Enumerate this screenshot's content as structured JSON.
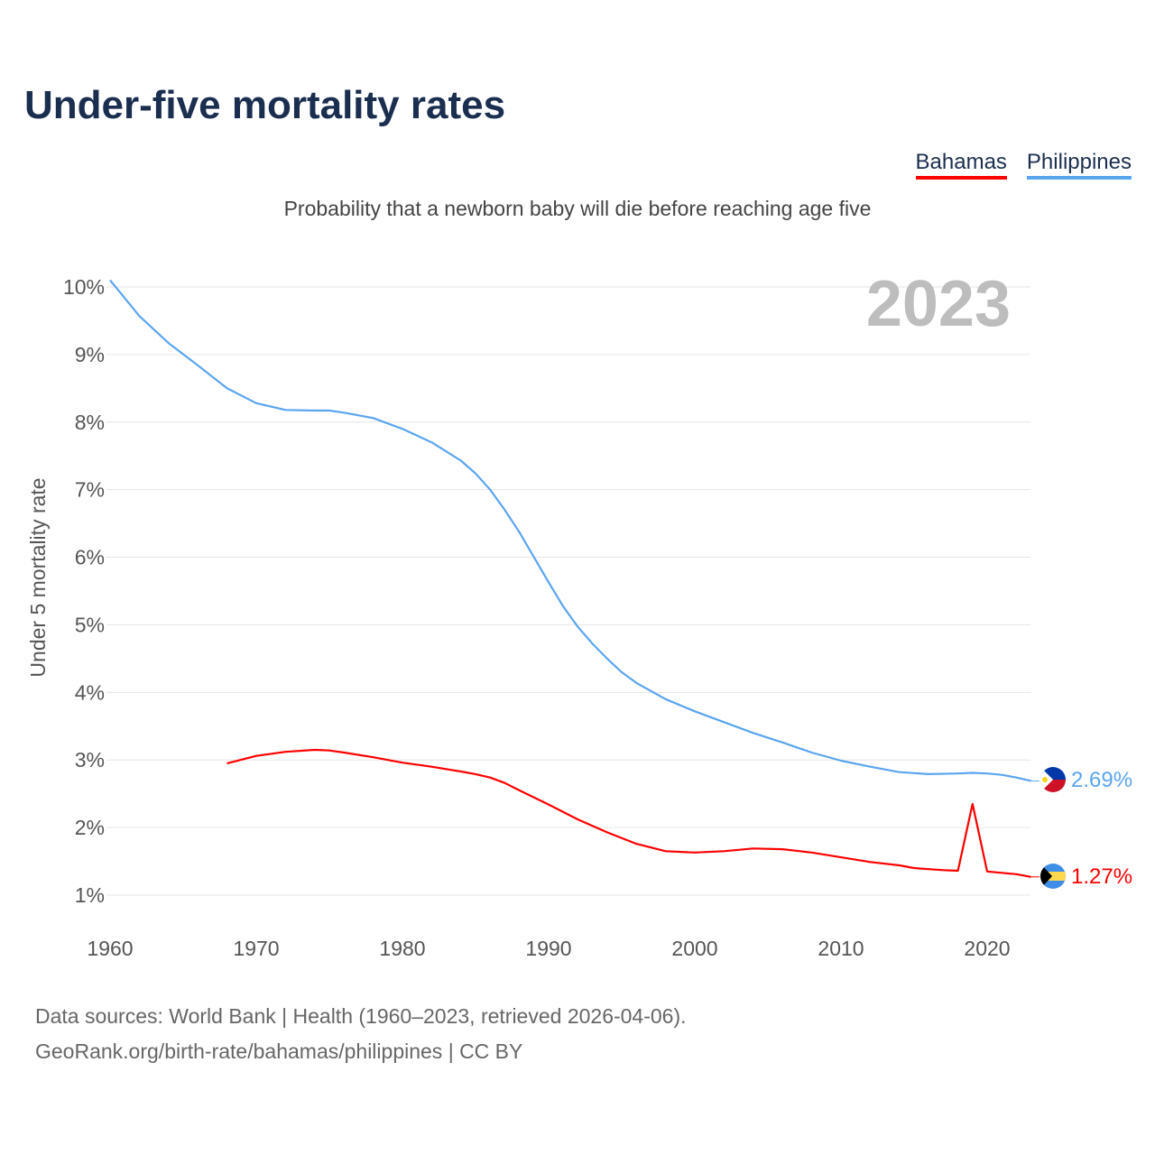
{
  "chart_data": {
    "type": "line",
    "title": "Under-five mortality rates",
    "subtitle": "Probability that a newborn baby will die before reaching age five",
    "ylabel": "Under 5 mortality rate",
    "xlabel": "",
    "year_watermark": "2023",
    "xlim": [
      1960,
      2023
    ],
    "ylim": [
      1,
      10
    ],
    "x_ticks": [
      1960,
      1970,
      1980,
      1990,
      2000,
      2010,
      2020
    ],
    "y_ticks": [
      1,
      2,
      3,
      4,
      5,
      6,
      7,
      8,
      9,
      10
    ],
    "y_tick_suffix": "%",
    "grid": true,
    "legend_position": "top-right",
    "series": [
      {
        "name": "Bahamas",
        "color": "#ff0000",
        "end_label": "1.27%",
        "x": [
          1968,
          1970,
          1972,
          1974,
          1975,
          1976,
          1978,
          1980,
          1982,
          1984,
          1985,
          1986,
          1987,
          1988,
          1990,
          1992,
          1994,
          1996,
          1998,
          2000,
          2002,
          2004,
          2006,
          2008,
          2010,
          2012,
          2014,
          2015,
          2017,
          2018,
          2019,
          2020,
          2022,
          2023
        ],
        "y": [
          2.95,
          3.06,
          3.12,
          3.15,
          3.14,
          3.11,
          3.04,
          2.96,
          2.9,
          2.83,
          2.79,
          2.74,
          2.66,
          2.55,
          2.34,
          2.12,
          1.93,
          1.76,
          1.65,
          1.63,
          1.65,
          1.69,
          1.68,
          1.63,
          1.56,
          1.49,
          1.44,
          1.4,
          1.37,
          1.36,
          2.35,
          1.35,
          1.31,
          1.27
        ]
      },
      {
        "name": "Philippines",
        "color": "#5aa5f0",
        "end_label": "2.69%",
        "x": [
          1960,
          1962,
          1964,
          1966,
          1968,
          1970,
          1972,
          1974,
          1975,
          1976,
          1978,
          1980,
          1982,
          1984,
          1985,
          1986,
          1987,
          1988,
          1989,
          1990,
          1991,
          1992,
          1993,
          1994,
          1995,
          1996,
          1998,
          2000,
          2002,
          2004,
          2006,
          2008,
          2010,
          2012,
          2014,
          2016,
          2018,
          2019,
          2020,
          2021,
          2022,
          2023
        ],
        "y": [
          10.1,
          9.57,
          9.17,
          8.84,
          8.5,
          8.28,
          8.18,
          8.17,
          8.17,
          8.14,
          8.06,
          7.9,
          7.7,
          7.43,
          7.24,
          7.0,
          6.7,
          6.37,
          6.0,
          5.63,
          5.27,
          4.97,
          4.72,
          4.5,
          4.3,
          4.14,
          3.9,
          3.72,
          3.56,
          3.4,
          3.26,
          3.11,
          2.99,
          2.9,
          2.82,
          2.79,
          2.8,
          2.81,
          2.8,
          2.78,
          2.74,
          2.69
        ]
      }
    ]
  },
  "footer": {
    "line1": "Data sources: World Bank | Health (1960–2023, retrieved 2026-04-06).",
    "line2": "GeoRank.org/birth-rate/bahamas/philippines | CC BY"
  }
}
